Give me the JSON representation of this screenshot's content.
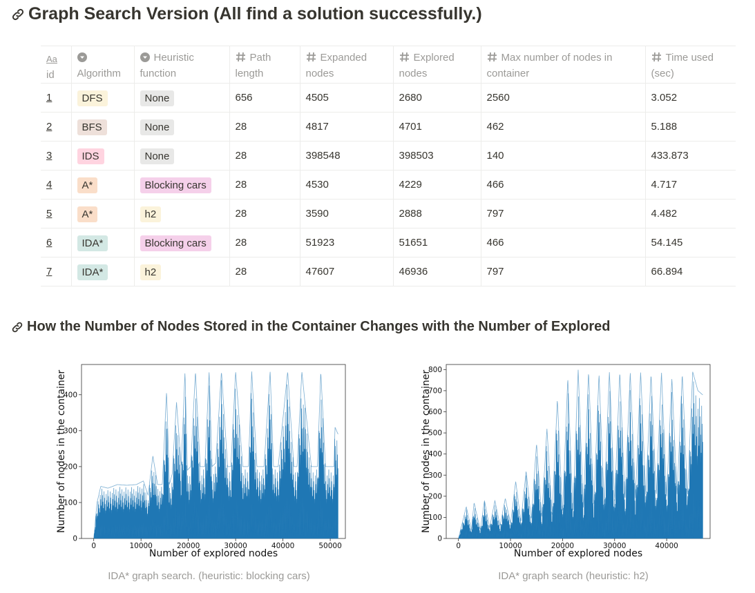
{
  "section1": {
    "title": "Graph Search Version (All find a solution successfully.)"
  },
  "section2": {
    "title": "How the Number of Nodes Stored in the Container Changes with the Number of Explored"
  },
  "table": {
    "columns": [
      {
        "icon": "title-icon",
        "icon_text": "Aa",
        "label": "id"
      },
      {
        "icon": "select-icon",
        "label": "Algorithm"
      },
      {
        "icon": "select-icon",
        "label": "Heuristic function"
      },
      {
        "icon": "number-icon",
        "label": "Path length"
      },
      {
        "icon": "number-icon",
        "label": "Expanded nodes"
      },
      {
        "icon": "number-icon",
        "label": "Explored nodes"
      },
      {
        "icon": "number-icon",
        "label": "Max number of nodes in container"
      },
      {
        "icon": "number-icon",
        "label": "Time used (sec)"
      }
    ],
    "rows": [
      {
        "id": "1",
        "algorithm": "DFS",
        "heuristic": "None",
        "path_length": "656",
        "expanded": "4505",
        "explored": "2680",
        "max_nodes": "2560",
        "time": "3.052"
      },
      {
        "id": "2",
        "algorithm": "BFS",
        "heuristic": "None",
        "path_length": "28",
        "expanded": "4817",
        "explored": "4701",
        "max_nodes": "462",
        "time": "5.188"
      },
      {
        "id": "3",
        "algorithm": "IDS",
        "heuristic": "None",
        "path_length": "28",
        "expanded": "398548",
        "explored": "398503",
        "max_nodes": "140",
        "time": "433.873"
      },
      {
        "id": "4",
        "algorithm": "A*",
        "heuristic": "Blocking cars",
        "path_length": "28",
        "expanded": "4530",
        "explored": "4229",
        "max_nodes": "466",
        "time": "4.717"
      },
      {
        "id": "5",
        "algorithm": "A*",
        "heuristic": "h2",
        "path_length": "28",
        "expanded": "3590",
        "explored": "2888",
        "max_nodes": "797",
        "time": "4.482"
      },
      {
        "id": "6",
        "algorithm": "IDA*",
        "heuristic": "Blocking cars",
        "path_length": "28",
        "expanded": "51923",
        "explored": "51651",
        "max_nodes": "466",
        "time": "54.145"
      },
      {
        "id": "7",
        "algorithm": "IDA*",
        "heuristic": "h2",
        "path_length": "28",
        "expanded": "47607",
        "explored": "46936",
        "max_nodes": "797",
        "time": "66.894"
      }
    ],
    "tag_colors": {
      "DFS": "#fbf3db",
      "BFS": "#eee0da",
      "IDS": "#ffd4e0",
      "A*": "#fadec9",
      "IDA*": "#d3e8e4",
      "None": "#e8e8e7",
      "Blocking cars": "#f5d0ea",
      "h2": "#fbf3db"
    }
  },
  "chart_data": [
    {
      "type": "area",
      "caption": "IDA* graph search. (heuristic: blocking cars)",
      "xlabel": "Number of explored nodes",
      "ylabel": "Number of nodes in the container",
      "xlim": [
        0,
        51651
      ],
      "ylim": [
        0,
        470
      ],
      "xticks": [
        0,
        10000,
        20000,
        30000,
        40000,
        50000
      ],
      "yticks": [
        0,
        100,
        200,
        300,
        400
      ],
      "color": "#1f77b4",
      "envelope": {
        "x": [
          0,
          700,
          1500,
          3000,
          5000,
          7000,
          9000,
          10500,
          11500,
          12500,
          13500,
          14500,
          15400,
          16000,
          16600,
          17500,
          18500,
          19300,
          19800,
          20500,
          21500,
          22500,
          23500,
          24400,
          25000,
          25800,
          27000,
          28300,
          29000,
          30000,
          31500,
          32700,
          33400,
          34500,
          36000,
          37300,
          38000,
          39000,
          41000,
          42300,
          43000,
          44000,
          46000,
          47300,
          48000,
          49000,
          50800,
          51000,
          51651
        ],
        "y": [
          0,
          100,
          145,
          140,
          150,
          148,
          150,
          160,
          120,
          230,
          150,
          150,
          410,
          150,
          180,
          380,
          200,
          465,
          190,
          200,
          465,
          200,
          200,
          465,
          200,
          210,
          465,
          200,
          200,
          465,
          200,
          200,
          465,
          200,
          200,
          465,
          200,
          200,
          465,
          200,
          200,
          465,
          200,
          200,
          465,
          200,
          200,
          310,
          290
        ]
      }
    },
    {
      "type": "area",
      "caption": "IDA* graph search (heuristic: h2)",
      "xlabel": "Number of explored nodes",
      "ylabel": "Number of nodes in the container",
      "xlim": [
        0,
        46936
      ],
      "ylim": [
        0,
        800
      ],
      "xticks": [
        0,
        10000,
        20000,
        30000,
        40000
      ],
      "yticks": [
        0,
        100,
        200,
        300,
        400,
        500,
        600,
        700,
        800
      ],
      "color": "#1f77b4",
      "envelope": {
        "x": [
          0,
          1500,
          2500,
          3000,
          4200,
          5000,
          6000,
          7000,
          8000,
          9000,
          10000,
          11000,
          12000,
          13000,
          14000,
          15000,
          16000,
          17000,
          18000,
          19000,
          20000,
          21000,
          22000,
          23000,
          24000,
          25000,
          26000,
          27000,
          28000,
          29000,
          30000,
          31000,
          32000,
          33000,
          34000,
          35000,
          36000,
          37000,
          38000,
          39000,
          40000,
          41000,
          42000,
          43000,
          44000,
          45000,
          46000,
          46936
        ],
        "y": [
          0,
          150,
          40,
          170,
          40,
          180,
          50,
          180,
          60,
          190,
          70,
          270,
          80,
          320,
          90,
          450,
          100,
          520,
          110,
          660,
          120,
          760,
          130,
          800,
          140,
          790,
          150,
          780,
          160,
          790,
          170,
          790,
          180,
          790,
          190,
          790,
          200,
          780,
          200,
          790,
          200,
          760,
          200,
          780,
          200,
          790,
          700,
          680
        ]
      }
    }
  ]
}
